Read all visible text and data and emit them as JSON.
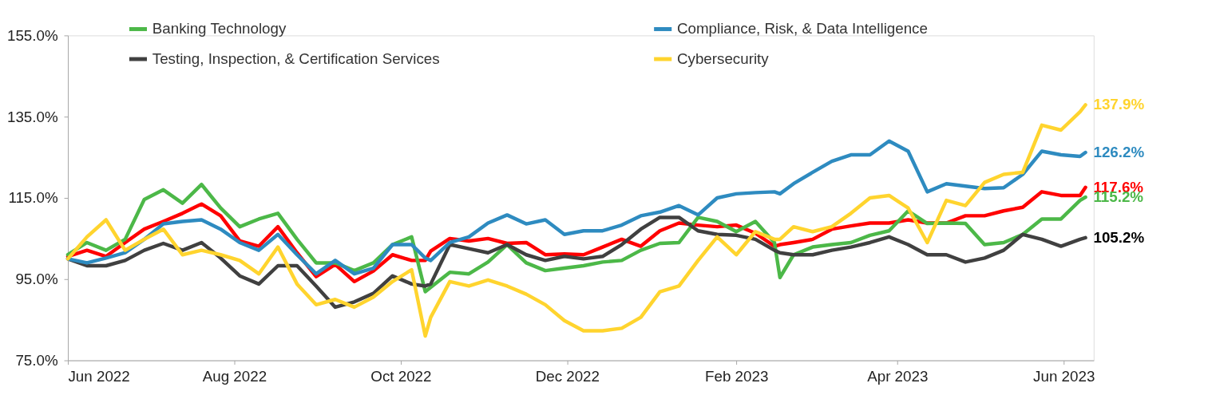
{
  "chart_data": {
    "type": "line",
    "x": [
      "2022-06-01",
      "2022-06-08",
      "2022-06-15",
      "2022-06-22",
      "2022-06-29",
      "2022-07-06",
      "2022-07-13",
      "2022-07-20",
      "2022-07-27",
      "2022-08-03",
      "2022-08-10",
      "2022-08-17",
      "2022-08-24",
      "2022-08-31",
      "2022-09-07",
      "2022-09-14",
      "2022-09-21",
      "2022-09-28",
      "2022-10-05",
      "2022-10-10",
      "2022-10-12",
      "2022-10-19",
      "2022-10-26",
      "2022-11-02",
      "2022-11-09",
      "2022-11-16",
      "2022-11-23",
      "2022-11-30",
      "2022-12-07",
      "2022-12-14",
      "2022-12-21",
      "2022-12-28",
      "2023-01-04",
      "2023-01-11",
      "2023-01-18",
      "2023-01-25",
      "2023-02-01",
      "2023-02-08",
      "2023-02-15",
      "2023-02-17",
      "2023-02-22",
      "2023-03-01",
      "2023-03-08",
      "2023-03-15",
      "2023-03-22",
      "2023-03-29",
      "2023-04-05",
      "2023-04-12",
      "2023-04-19",
      "2023-04-26",
      "2023-05-03",
      "2023-05-10",
      "2023-05-17",
      "2023-05-24",
      "2023-05-31",
      "2023-06-07",
      "2023-06-09"
    ],
    "series": [
      {
        "color": "#ff0000",
        "values": [
          100.6,
          102.1,
          100.6,
          104.0,
          107.3,
          109.2,
          111.2,
          113.5,
          110.6,
          104.4,
          103.1,
          107.9,
          101.5,
          95.6,
          98.6,
          94.4,
          97.0,
          101.0,
          99.6,
          99.6,
          101.9,
          105.0,
          104.4,
          105.0,
          103.8,
          104.0,
          101.0,
          101.2,
          101.0,
          102.9,
          104.8,
          103.1,
          106.9,
          108.8,
          108.3,
          107.9,
          108.3,
          106.3,
          103.1,
          103.5,
          104.0,
          104.8,
          107.3,
          108.1,
          108.8,
          108.8,
          109.6,
          108.8,
          108.8,
          110.6,
          110.6,
          111.8,
          112.7,
          116.5,
          115.6,
          115.6,
          117.6
        ]
      },
      {
        "name": "Banking Technology",
        "color": "#4cb848",
        "values": [
          101.0,
          104.0,
          102.1,
          104.8,
          114.6,
          117.0,
          113.7,
          118.3,
          112.5,
          107.9,
          109.8,
          111.2,
          104.8,
          99.0,
          99.0,
          97.1,
          99.0,
          103.5,
          105.4,
          91.9,
          93.0,
          96.7,
          96.3,
          99.2,
          103.5,
          99.0,
          97.1,
          97.7,
          98.3,
          99.2,
          99.6,
          102.1,
          103.8,
          104.0,
          110.2,
          109.2,
          106.7,
          109.2,
          104.0,
          95.4,
          101.0,
          102.9,
          103.5,
          104.0,
          105.8,
          106.9,
          111.8,
          108.7,
          108.8,
          108.7,
          103.5,
          104.0,
          106.0,
          109.8,
          109.8,
          114.4,
          115.2
        ]
      },
      {
        "name": "Testing, Inspection, & Certification Services",
        "color": "#404040",
        "values": [
          100.0,
          98.3,
          98.3,
          99.6,
          102.1,
          103.8,
          102.1,
          104.0,
          100.2,
          95.8,
          93.8,
          98.3,
          98.3,
          93.3,
          88.1,
          89.4,
          91.5,
          95.8,
          93.8,
          93.3,
          93.8,
          103.5,
          102.5,
          101.5,
          103.5,
          101.0,
          99.6,
          100.6,
          100.0,
          100.6,
          103.5,
          107.3,
          110.2,
          110.2,
          106.9,
          106.0,
          105.8,
          104.8,
          102.1,
          101.5,
          101.0,
          101.0,
          102.1,
          102.9,
          104.0,
          105.4,
          103.5,
          101.0,
          101.0,
          99.2,
          100.2,
          102.1,
          106.0,
          104.8,
          103.1,
          104.8,
          105.2
        ]
      },
      {
        "name": "Compliance, Risk, & Data Intelligence",
        "color": "#2e8bc0",
        "values": [
          100.0,
          99.0,
          100.2,
          101.5,
          104.8,
          108.6,
          109.2,
          109.6,
          107.3,
          104.0,
          102.1,
          106.0,
          101.0,
          96.3,
          99.6,
          96.3,
          97.7,
          103.5,
          103.5,
          100.2,
          99.6,
          104.0,
          105.4,
          108.8,
          110.8,
          108.6,
          109.6,
          106.0,
          106.9,
          106.9,
          108.3,
          110.6,
          111.5,
          113.1,
          110.8,
          115.0,
          116.0,
          116.3,
          116.5,
          116.0,
          118.5,
          121.3,
          124.0,
          125.6,
          125.6,
          129.0,
          126.5,
          116.5,
          118.5,
          117.9,
          117.3,
          117.5,
          120.8,
          126.5,
          125.6,
          125.2,
          126.2
        ]
      },
      {
        "name": "Cybersecurity",
        "color": "#ffd42e",
        "values": [
          100.0,
          105.4,
          109.6,
          102.1,
          104.8,
          107.3,
          101.0,
          102.1,
          101.0,
          99.6,
          96.3,
          102.9,
          93.8,
          88.7,
          90.0,
          88.1,
          90.6,
          94.4,
          97.3,
          81.0,
          85.6,
          94.4,
          93.3,
          94.8,
          93.3,
          91.3,
          88.7,
          84.8,
          82.3,
          82.3,
          82.9,
          85.6,
          91.9,
          93.3,
          99.6,
          105.4,
          101.0,
          106.7,
          104.8,
          104.8,
          107.9,
          106.7,
          107.9,
          111.2,
          115.0,
          115.6,
          112.5,
          104.0,
          114.4,
          113.1,
          118.8,
          120.8,
          121.3,
          132.9,
          131.7,
          136.2,
          137.9
        ]
      }
    ],
    "annotations": [
      {
        "text": "117.6%",
        "x": "2023-06-09",
        "y": 117.6
      },
      {
        "text": "115.2%",
        "x": "2023-06-09",
        "y": 115.2
      },
      {
        "text": "105.2%",
        "x": "2023-06-09",
        "y": 105.2
      },
      {
        "text": "126.2%",
        "x": "2023-06-09",
        "y": 126.2
      },
      {
        "text": "137.9%",
        "x": "2023-06-09",
        "y": 137.9
      }
    ],
    "xlim": [
      "2022-06-01",
      "2023-06-12"
    ],
    "xticks": [
      {
        "value": "2022-06-01",
        "label": "Jun 2022"
      },
      {
        "value": "2022-08-01",
        "label": "Aug 2022"
      },
      {
        "value": "2022-10-01",
        "label": "Oct 2022"
      },
      {
        "value": "2022-12-01",
        "label": "Dec 2022"
      },
      {
        "value": "2023-02-01",
        "label": "Feb 2023"
      },
      {
        "value": "2023-04-01",
        "label": "Apr 2023"
      },
      {
        "value": "2023-06-01",
        "label": "Jun 2023"
      }
    ],
    "ylim": [
      75,
      155
    ],
    "yticks": [
      {
        "value": 75,
        "label": "75.0%"
      },
      {
        "value": 95,
        "label": "95.0%"
      },
      {
        "value": 115,
        "label": "115.0%"
      },
      {
        "value": 135,
        "label": "135.0%"
      },
      {
        "value": 155,
        "label": "155.0%"
      }
    ],
    "grid": false,
    "legend": "top",
    "marker": "none",
    "line_style": "solid"
  }
}
